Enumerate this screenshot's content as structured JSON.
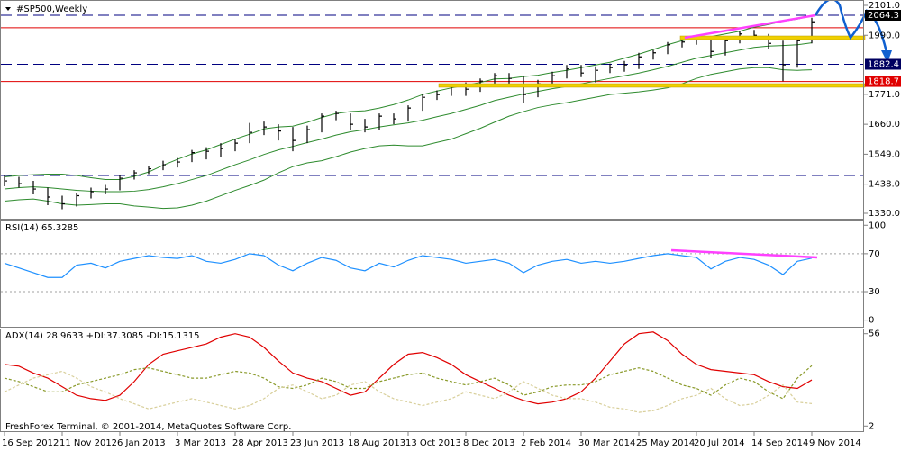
{
  "chart_data": [
    {
      "type": "ohlc",
      "title": "#SP500,Weekly",
      "color": "#000000",
      "categories": [
        "16 Sep 2012",
        null,
        null,
        null,
        "11 Nov 2012",
        null,
        null,
        null,
        "6 Jan 2013",
        null,
        null,
        null,
        "3 Mar 2013",
        null,
        null,
        null,
        "28 Apr 2013",
        null,
        null,
        null,
        "23 Jun 2013",
        null,
        null,
        null,
        "18 Aug 2013",
        null,
        null,
        null,
        "13 Oct 2013",
        null,
        null,
        null,
        "8 Dec 2013",
        null,
        null,
        null,
        "2 Feb 2014",
        null,
        null,
        null,
        "30 Mar 2014",
        null,
        null,
        null,
        "25 May 2014",
        null,
        null,
        null,
        "20 Jul 2014",
        null,
        null,
        null,
        "14 Sep 2014",
        null,
        null,
        null,
        "9 Nov 2014"
      ],
      "close": [
        1450,
        1440,
        1420,
        1390,
        1365,
        1395,
        1410,
        1420,
        1460,
        1480,
        1495,
        1510,
        1520,
        1555,
        1560,
        1570,
        1590,
        1630,
        1650,
        1635,
        1600,
        1640,
        1690,
        1700,
        1660,
        1650,
        1690,
        1680,
        1720,
        1760,
        1770,
        1800,
        1790,
        1820,
        1840,
        1830,
        1770,
        1810,
        1840,
        1865,
        1850,
        1860,
        1870,
        1880,
        1910,
        1925,
        1955,
        1965,
        1975,
        1930,
        1970,
        1995,
        1990,
        1960,
        1880,
        1970,
        2040
      ],
      "high": [
        1470,
        1465,
        1450,
        1425,
        1395,
        1405,
        1425,
        1435,
        1470,
        1490,
        1505,
        1525,
        1535,
        1565,
        1575,
        1590,
        1605,
        1665,
        1670,
        1660,
        1650,
        1655,
        1700,
        1710,
        1700,
        1680,
        1700,
        1700,
        1730,
        1770,
        1785,
        1810,
        1815,
        1830,
        1850,
        1850,
        1840,
        1825,
        1855,
        1880,
        1880,
        1875,
        1885,
        1895,
        1925,
        1935,
        1965,
        1980,
        1990,
        1980,
        1980,
        2005,
        2010,
        1995,
        1970,
        1985,
        2055
      ],
      "low": [
        1430,
        1425,
        1400,
        1360,
        1345,
        1355,
        1385,
        1400,
        1415,
        1455,
        1475,
        1490,
        1500,
        1520,
        1530,
        1540,
        1560,
        1590,
        1620,
        1600,
        1560,
        1590,
        1630,
        1675,
        1640,
        1630,
        1640,
        1660,
        1670,
        1710,
        1750,
        1765,
        1765,
        1780,
        1810,
        1810,
        1740,
        1760,
        1800,
        1830,
        1835,
        1815,
        1850,
        1855,
        1865,
        1900,
        1920,
        1945,
        1955,
        1905,
        1915,
        1960,
        1975,
        1940,
        1820,
        1870,
        1960
      ],
      "bands": {
        "color": "#2e8b2e",
        "upper": [
          1465,
          1470,
          1473,
          1475,
          1475,
          1470,
          1462,
          1455,
          1455,
          1467,
          1483,
          1508,
          1530,
          1550,
          1565,
          1585,
          1605,
          1623,
          1643,
          1650,
          1653,
          1667,
          1685,
          1700,
          1707,
          1710,
          1720,
          1733,
          1750,
          1770,
          1783,
          1795,
          1805,
          1815,
          1828,
          1830,
          1837,
          1842,
          1852,
          1860,
          1870,
          1880,
          1890,
          1905,
          1920,
          1937,
          1955,
          1970,
          1980,
          1985,
          1995,
          2005,
          2020,
          2030,
          2042,
          2050,
          2062
        ],
        "middle": [
          1420,
          1425,
          1428,
          1425,
          1420,
          1415,
          1412,
          1410,
          1410,
          1412,
          1418,
          1428,
          1440,
          1455,
          1470,
          1490,
          1510,
          1528,
          1548,
          1565,
          1578,
          1592,
          1605,
          1620,
          1632,
          1640,
          1650,
          1658,
          1665,
          1675,
          1688,
          1700,
          1715,
          1730,
          1748,
          1760,
          1772,
          1782,
          1792,
          1800,
          1810,
          1820,
          1830,
          1840,
          1850,
          1862,
          1875,
          1890,
          1905,
          1915,
          1925,
          1935,
          1945,
          1950,
          1952,
          1955,
          1962
        ],
        "lower": [
          1375,
          1380,
          1383,
          1375,
          1365,
          1360,
          1362,
          1365,
          1365,
          1357,
          1353,
          1348,
          1350,
          1360,
          1375,
          1395,
          1415,
          1433,
          1453,
          1480,
          1503,
          1517,
          1525,
          1540,
          1557,
          1570,
          1580,
          1583,
          1580,
          1580,
          1593,
          1605,
          1625,
          1645,
          1668,
          1690,
          1707,
          1722,
          1732,
          1740,
          1750,
          1760,
          1770,
          1775,
          1780,
          1787,
          1795,
          1810,
          1830,
          1845,
          1855,
          1865,
          1870,
          1870,
          1862,
          1860,
          1862
        ]
      },
      "ylim": [
        1310,
        2121
      ],
      "yticks": [
        {
          "value": 2101,
          "label": "2101.0"
        },
        {
          "value": 1990,
          "label": "1990.0"
        },
        {
          "value": 1771,
          "label": "1771.0"
        },
        {
          "value": 1660,
          "label": "1660.0"
        },
        {
          "value": 1549,
          "label": "1549.0"
        },
        {
          "value": 1438,
          "label": "1438.0"
        },
        {
          "value": 1330,
          "label": "1330.0"
        }
      ],
      "levels": [
        {
          "value": 2064.3,
          "label": "2064.3",
          "style": "dashed",
          "color": "#000080",
          "box": "#000000"
        },
        {
          "value": 2018,
          "style": "solid",
          "color": "#e00000"
        },
        {
          "value": 1882.4,
          "label": "1882.4",
          "style": "dashed",
          "color": "#000080",
          "box": "#000060"
        },
        {
          "value": 1818.7,
          "label": "1818.7",
          "style": "solid",
          "color": "#e00000",
          "box": "#e00000"
        },
        {
          "value": 1470,
          "style": "dashed",
          "color": "#000080"
        }
      ]
    },
    {
      "type": "line",
      "title": "RSI(14) 65.3285",
      "series": [
        {
          "color": "#1e90ff",
          "dash": "none",
          "values": [
            60,
            55,
            50,
            45,
            45,
            58,
            60,
            55,
            62,
            65,
            68,
            66,
            65,
            68,
            62,
            60,
            64,
            70,
            68,
            58,
            52,
            60,
            66,
            63,
            55,
            52,
            60,
            56,
            63,
            68,
            66,
            64,
            60,
            62,
            64,
            60,
            50,
            58,
            62,
            64,
            60,
            62,
            60,
            62,
            65,
            68,
            70,
            68,
            66,
            54,
            62,
            66,
            64,
            58,
            48,
            62,
            65.3285
          ]
        }
      ],
      "ylim": [
        -7,
        105
      ],
      "yticks": [
        100,
        70,
        30,
        0
      ],
      "levels": [
        {
          "value": 70,
          "style": "dotted",
          "color": "#a0a0a0"
        },
        {
          "value": 30,
          "style": "dotted",
          "color": "#a0a0a0"
        }
      ]
    },
    {
      "type": "line",
      "title": "ADX(14) 28.9633 +DI:37.3085 -DI:15.1315",
      "series": [
        {
          "color": "#e00000",
          "dash": "none",
          "values": [
            38,
            37,
            33,
            30,
            25,
            20,
            18,
            17,
            20,
            28,
            38,
            44,
            46,
            48,
            50,
            54,
            56,
            54,
            48,
            40,
            33,
            30,
            28,
            24,
            20,
            22,
            30,
            38,
            44,
            45,
            42,
            38,
            32,
            28,
            24,
            20,
            17,
            15,
            16,
            18,
            22,
            30,
            40,
            50,
            56,
            57,
            52,
            44,
            38,
            35,
            34,
            33,
            32,
            28,
            25,
            24,
            28.9633
          ]
        },
        {
          "color": "#8a9a2a",
          "dash": "3,2",
          "values": [
            30,
            28,
            25,
            22,
            22,
            26,
            28,
            30,
            32,
            35,
            36,
            34,
            32,
            30,
            30,
            32,
            34,
            33,
            30,
            25,
            24,
            26,
            30,
            28,
            24,
            24,
            28,
            30,
            32,
            33,
            30,
            28,
            26,
            28,
            30,
            26,
            20,
            22,
            25,
            26,
            26,
            28,
            32,
            34,
            36,
            34,
            30,
            26,
            24,
            20,
            26,
            30,
            28,
            22,
            18,
            30,
            37.3085
          ]
        },
        {
          "color": "#d8cf9a",
          "dash": "3,2",
          "values": [
            22,
            26,
            30,
            32,
            34,
            30,
            25,
            22,
            18,
            15,
            12,
            14,
            16,
            18,
            16,
            14,
            12,
            14,
            18,
            24,
            26,
            22,
            18,
            20,
            26,
            28,
            22,
            18,
            16,
            14,
            16,
            18,
            22,
            20,
            18,
            22,
            28,
            24,
            20,
            18,
            18,
            16,
            13,
            12,
            10,
            11,
            14,
            18,
            20,
            24,
            18,
            14,
            15,
            20,
            26,
            16,
            15.1315
          ]
        }
      ],
      "ylim": [
        -1,
        59
      ],
      "yticks": [
        56,
        2
      ]
    }
  ],
  "footer": "FreshForex Terminal, © 2001-2014, MetaQuotes Software Corp."
}
